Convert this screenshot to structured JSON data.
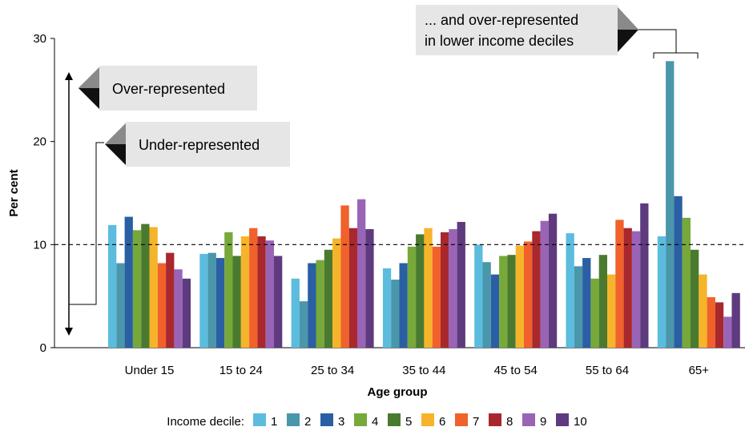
{
  "chart_data": {
    "type": "bar",
    "title": "",
    "xlabel": "Age group",
    "ylabel": "Per cent",
    "ylim": [
      0,
      30
    ],
    "yticks": [
      0,
      10,
      20,
      30
    ],
    "reference_line": 10,
    "grid": false,
    "legend_title": "Income decile:",
    "legend_position": "bottom",
    "categories": [
      "Under 15",
      "15 to 24",
      "25 to 34",
      "35 to 44",
      "45 to 54",
      "55 to 64",
      "65+"
    ],
    "series": [
      {
        "name": "1",
        "color": "#5BBCDE",
        "values": [
          11.9,
          9.1,
          6.7,
          7.7,
          10.0,
          11.1,
          10.8
        ]
      },
      {
        "name": "2",
        "color": "#4A96AA",
        "values": [
          8.2,
          9.2,
          4.5,
          6.6,
          8.3,
          7.9,
          27.8
        ]
      },
      {
        "name": "3",
        "color": "#2A5FA4",
        "values": [
          12.7,
          8.7,
          8.2,
          8.2,
          7.1,
          8.7,
          14.7
        ]
      },
      {
        "name": "4",
        "color": "#77A83A",
        "values": [
          11.4,
          11.2,
          8.5,
          9.8,
          8.9,
          6.7,
          12.6
        ]
      },
      {
        "name": "5",
        "color": "#4A7A2F",
        "values": [
          12.0,
          8.9,
          9.5,
          11.0,
          9.0,
          9.0,
          9.5
        ]
      },
      {
        "name": "6",
        "color": "#F6B42A",
        "values": [
          11.7,
          10.8,
          10.6,
          11.6,
          9.9,
          7.1,
          7.1
        ]
      },
      {
        "name": "7",
        "color": "#F0612B",
        "values": [
          8.2,
          11.6,
          13.8,
          9.8,
          10.3,
          12.4,
          4.9
        ]
      },
      {
        "name": "8",
        "color": "#A8282D",
        "values": [
          9.2,
          10.8,
          11.6,
          11.2,
          11.3,
          11.6,
          4.4
        ]
      },
      {
        "name": "9",
        "color": "#9A64B6",
        "values": [
          7.6,
          10.4,
          14.4,
          11.5,
          12.3,
          11.3,
          3.0
        ]
      },
      {
        "name": "10",
        "color": "#5E3A7E",
        "values": [
          6.7,
          8.9,
          11.5,
          12.2,
          13.0,
          14.0,
          5.3
        ]
      }
    ]
  },
  "annotations": {
    "over_represented": "Over-represented",
    "under_represented": "Under-represented",
    "over_lower_line1": "... and over-represented",
    "over_lower_line2": "in lower income deciles"
  }
}
